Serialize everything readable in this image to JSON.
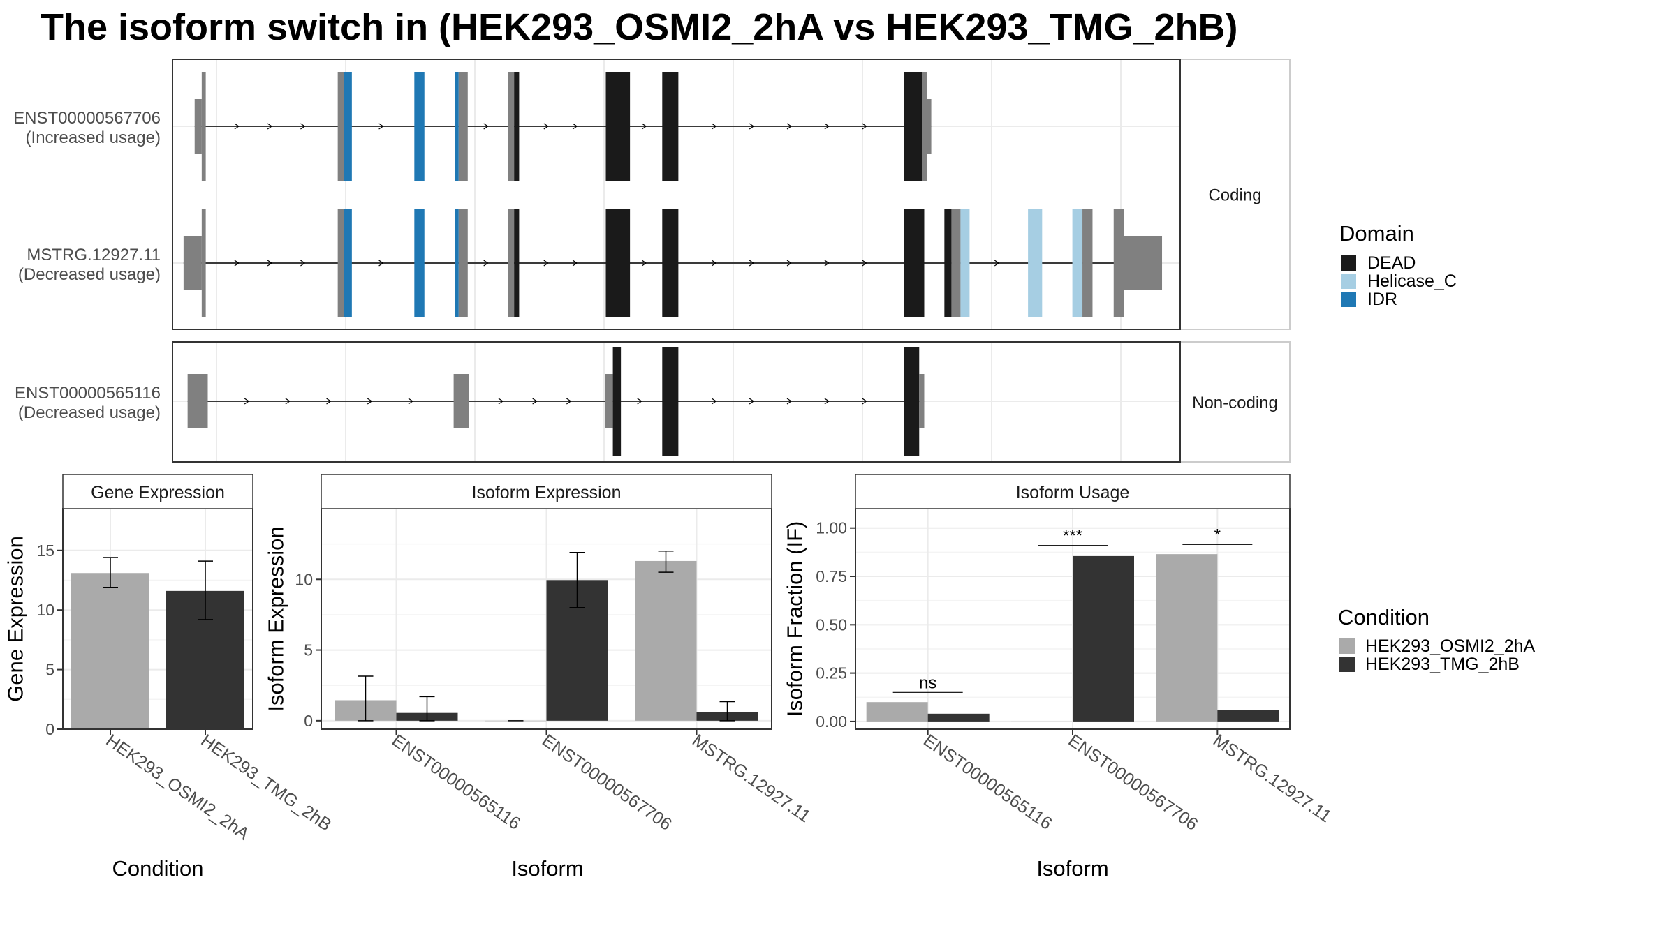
{
  "title": "The isoform switch in  (HEK293_OSMI2_2hA vs HEK293_TMG_2hB)",
  "colors": {
    "exon": "#808080",
    "DEAD": "#1a1a1a",
    "Helicase_C": "#a6cee3",
    "IDR": "#1f78b4",
    "cond_A": "#aaaaaa",
    "cond_B": "#333333",
    "grid": "#ebebeb",
    "panel_border": "#333333"
  },
  "chart_data": [
    {
      "type": "gene-structure",
      "panels": [
        {
          "strip": "Coding",
          "isoforms": [
            {
              "label": "ENST00000567706",
              "usage": "(Increased usage)",
              "segments": [
                {
                  "s": 22,
                  "e": 29,
                  "kind": "utr"
                },
                {
                  "s": 29,
                  "e": 33,
                  "kind": "cds"
                },
                {
                  "s": 164,
                  "e": 170,
                  "kind": "cds"
                },
                {
                  "s": 170,
                  "e": 178,
                  "kind": "IDR"
                },
                {
                  "s": 240,
                  "e": 250,
                  "kind": "IDR"
                },
                {
                  "s": 280,
                  "e": 284,
                  "kind": "IDR"
                },
                {
                  "s": 284,
                  "e": 293,
                  "kind": "cds"
                },
                {
                  "s": 333,
                  "e": 339,
                  "kind": "cds"
                },
                {
                  "s": 339,
                  "e": 344,
                  "kind": "DEAD"
                },
                {
                  "s": 430,
                  "e": 454,
                  "kind": "DEAD"
                },
                {
                  "s": 486,
                  "e": 502,
                  "kind": "DEAD"
                },
                {
                  "s": 726,
                  "e": 744,
                  "kind": "DEAD"
                },
                {
                  "s": 744,
                  "e": 749,
                  "kind": "cds"
                },
                {
                  "s": 749,
                  "e": 753,
                  "kind": "utr"
                }
              ]
            },
            {
              "label": "MSTRG.12927.11",
              "usage": "(Decreased usage)",
              "segments": [
                {
                  "s": 11,
                  "e": 29,
                  "kind": "utr"
                },
                {
                  "s": 29,
                  "e": 33,
                  "kind": "cds"
                },
                {
                  "s": 164,
                  "e": 170,
                  "kind": "cds"
                },
                {
                  "s": 170,
                  "e": 178,
                  "kind": "IDR"
                },
                {
                  "s": 240,
                  "e": 250,
                  "kind": "IDR"
                },
                {
                  "s": 280,
                  "e": 284,
                  "kind": "IDR"
                },
                {
                  "s": 284,
                  "e": 293,
                  "kind": "cds"
                },
                {
                  "s": 333,
                  "e": 339,
                  "kind": "cds"
                },
                {
                  "s": 339,
                  "e": 344,
                  "kind": "DEAD"
                },
                {
                  "s": 430,
                  "e": 454,
                  "kind": "DEAD"
                },
                {
                  "s": 486,
                  "e": 502,
                  "kind": "DEAD"
                },
                {
                  "s": 726,
                  "e": 746,
                  "kind": "DEAD"
                },
                {
                  "s": 766,
                  "e": 773,
                  "kind": "DEAD"
                },
                {
                  "s": 773,
                  "e": 782,
                  "kind": "cds"
                },
                {
                  "s": 782,
                  "e": 791,
                  "kind": "Helicase_C"
                },
                {
                  "s": 849,
                  "e": 863,
                  "kind": "Helicase_C"
                },
                {
                  "s": 893,
                  "e": 903,
                  "kind": "Helicase_C"
                },
                {
                  "s": 903,
                  "e": 913,
                  "kind": "cds"
                },
                {
                  "s": 934,
                  "e": 944,
                  "kind": "cds"
                },
                {
                  "s": 944,
                  "e": 982,
                  "kind": "utr"
                }
              ]
            }
          ]
        },
        {
          "strip": "Non-coding",
          "isoforms": [
            {
              "label": "ENST00000565116",
              "usage": "(Decreased usage)",
              "segments": [
                {
                  "s": 15,
                  "e": 35,
                  "kind": "utr"
                },
                {
                  "s": 279,
                  "e": 294,
                  "kind": "utr"
                },
                {
                  "s": 429,
                  "e": 437,
                  "kind": "utr"
                },
                {
                  "s": 437,
                  "e": 445,
                  "kind": "DEAD"
                },
                {
                  "s": 486,
                  "e": 502,
                  "kind": "DEAD"
                },
                {
                  "s": 726,
                  "e": 741,
                  "kind": "DEAD"
                },
                {
                  "s": 741,
                  "e": 746,
                  "kind": "utr"
                }
              ]
            }
          ]
        }
      ]
    },
    {
      "type": "bar",
      "strip": "Gene Expression",
      "xlabel": "Condition",
      "ylabel": "Gene Expression",
      "ylim": [
        0,
        18.5
      ],
      "yticks": [
        0,
        5,
        10,
        15
      ],
      "categories": [
        "HEK293_OSMI2_2hA",
        "HEK293_TMG_2hB"
      ],
      "series": [
        {
          "name": "HEK293_OSMI2_2hA",
          "values": [
            13.1,
            null
          ],
          "err_low": [
            11.9,
            null
          ],
          "err_high": [
            14.4,
            null
          ]
        },
        {
          "name": "HEK293_TMG_2hB",
          "values": [
            null,
            11.6
          ],
          "err_low": [
            null,
            9.2
          ],
          "err_high": [
            null,
            14.1
          ]
        }
      ]
    },
    {
      "type": "bar",
      "strip": "Isoform Expression",
      "xlabel": "Isoform",
      "ylabel": "Isoform Expression",
      "ylim": [
        -0.6,
        15
      ],
      "yticks": [
        0,
        5,
        10
      ],
      "categories": [
        "ENST00000565116",
        "ENST00000567706",
        "MSTRG.12927.11"
      ],
      "series": [
        {
          "name": "HEK293_OSMI2_2hA",
          "values": [
            1.45,
            0.0,
            11.3
          ],
          "err_low": [
            0.0,
            0.0,
            10.5
          ],
          "err_high": [
            3.15,
            0.0,
            12.0
          ]
        },
        {
          "name": "HEK293_TMG_2hB",
          "values": [
            0.55,
            9.95,
            0.6
          ],
          "err_low": [
            0.0,
            8.0,
            0.0
          ],
          "err_high": [
            1.7,
            11.9,
            1.35
          ]
        }
      ]
    },
    {
      "type": "bar",
      "strip": "Isoform Usage",
      "xlabel": "Isoform",
      "ylabel": "Isoform Fraction (IF)",
      "ylim": [
        -0.04,
        1.1
      ],
      "yticks": [
        0.0,
        0.25,
        0.5,
        0.75,
        1.0
      ],
      "ytick_labels": [
        "0.00",
        "0.25",
        "0.50",
        "0.75",
        "1.00"
      ],
      "categories": [
        "ENST00000565116",
        "ENST00000567706",
        "MSTRG.12927.11"
      ],
      "series": [
        {
          "name": "HEK293_OSMI2_2hA",
          "values": [
            0.1,
            0.0,
            0.865
          ]
        },
        {
          "name": "HEK293_TMG_2hB",
          "values": [
            0.04,
            0.855,
            0.06
          ]
        }
      ],
      "annotations": [
        {
          "category": 0,
          "text": "ns",
          "y": 0.15
        },
        {
          "category": 1,
          "text": "***",
          "y": 0.91
        },
        {
          "category": 2,
          "text": "*",
          "y": 0.915
        }
      ]
    }
  ],
  "legends": {
    "domain": {
      "title": "Domain",
      "items": [
        "DEAD",
        "Helicase_C",
        "IDR"
      ]
    },
    "condition": {
      "title": "Condition",
      "items": [
        "HEK293_OSMI2_2hA",
        "HEK293_TMG_2hB"
      ]
    }
  }
}
